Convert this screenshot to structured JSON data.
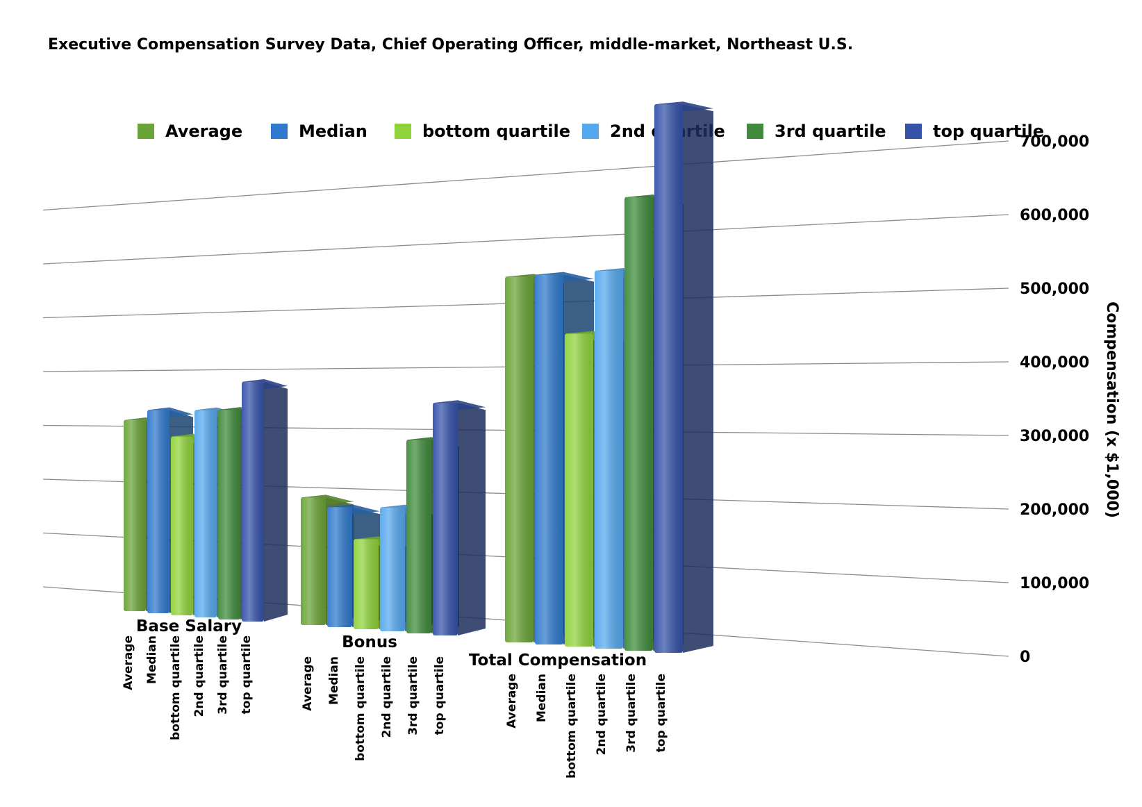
{
  "chart_data": {
    "type": "bar",
    "title": "Executive Compensation Survey Data, Chief Operating Officer, middle-market, Northeast U.S.",
    "ylabel": "Compensation (x $1,000)",
    "xlabel": "",
    "ylim": [
      0,
      700000
    ],
    "y_ticks": [
      "0",
      "100,000",
      "200,000",
      "300,000",
      "400,000",
      "500,000",
      "600,000",
      "700,000"
    ],
    "grid": true,
    "legend_position": "top",
    "groups": [
      "Base Salary",
      "Bonus",
      "Total Compensation"
    ],
    "series": [
      {
        "name": "Average",
        "color": "#6aa336",
        "values": [
          235000,
          170000,
          450000
        ]
      },
      {
        "name": "Median",
        "color": "#2f79cc",
        "values": [
          250000,
          160000,
          455000
        ]
      },
      {
        "name": "bottom quartile",
        "color": "#8fd23a",
        "values": [
          220000,
          120000,
          385000
        ]
      },
      {
        "name": "2nd quartile",
        "color": "#55a8ee",
        "values": [
          255000,
          165000,
          465000
        ]
      },
      {
        "name": "3rd quartile",
        "color": "#3f8a3c",
        "values": [
          258000,
          258000,
          558000
        ]
      },
      {
        "name": "top quartile",
        "color": "#3552a8",
        "values": [
          295000,
          310000,
          675000
        ]
      }
    ]
  }
}
